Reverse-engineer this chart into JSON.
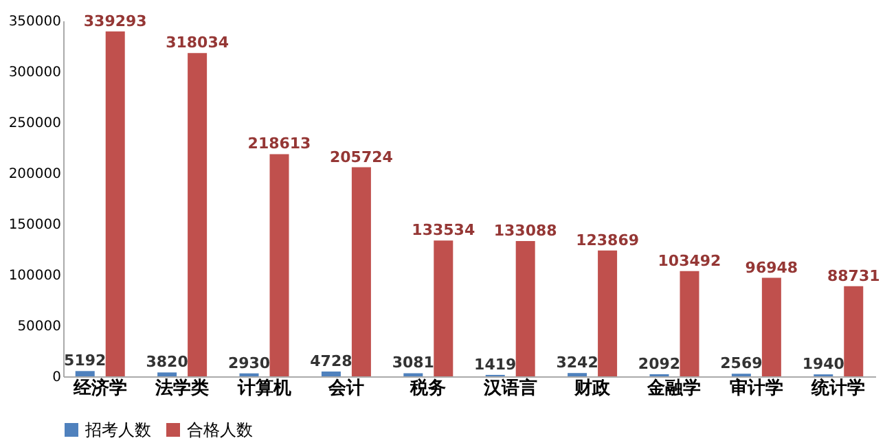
{
  "chart_data": {
    "type": "bar",
    "categories": [
      "经济学",
      "法学类",
      "计算机",
      "会计",
      "税务",
      "汉语言",
      "财政",
      "金融学",
      "审计学",
      "统计学"
    ],
    "series": [
      {
        "name": "招考人数",
        "color": "#4f81bd",
        "values": [
          5192,
          3820,
          2930,
          4728,
          3081,
          1419,
          3242,
          2092,
          2569,
          1940
        ]
      },
      {
        "name": "合格人数",
        "color": "#c0504d",
        "values": [
          339293,
          318034,
          218613,
          205724,
          133534,
          133088,
          123869,
          103492,
          96948,
          88731
        ]
      }
    ],
    "ylim": [
      0,
      350000
    ],
    "yticks": [
      0,
      50000,
      100000,
      150000,
      200000,
      250000,
      300000,
      350000
    ],
    "grid": false,
    "legend": "bottom",
    "data_labels": true
  }
}
